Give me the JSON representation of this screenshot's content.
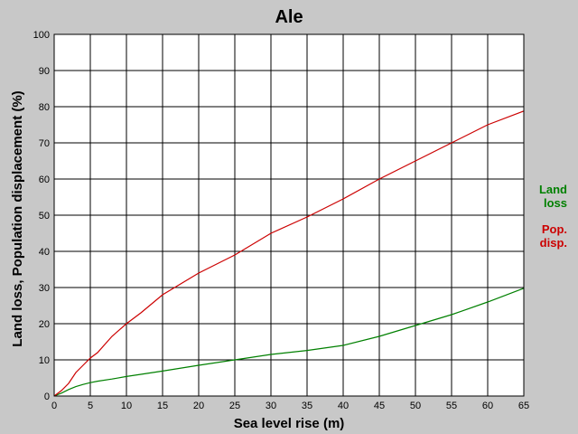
{
  "chart_data": {
    "type": "line",
    "title": "Ale",
    "xlabel": "Sea level rise (m)",
    "ylabel": "Land loss, Population displacement (%)",
    "xlim": [
      0,
      65
    ],
    "ylim": [
      0,
      100
    ],
    "xticks": [
      0,
      5,
      10,
      15,
      20,
      25,
      30,
      35,
      40,
      45,
      50,
      55,
      60,
      65
    ],
    "yticks": [
      0,
      10,
      20,
      30,
      40,
      50,
      60,
      70,
      80,
      90,
      100
    ],
    "grid": true,
    "legend_position": "right",
    "series": [
      {
        "name": "Land loss",
        "legend_lines": [
          "Land",
          "loss"
        ],
        "color": "#008000",
        "x": [
          0,
          1,
          2,
          3,
          4,
          5,
          6,
          8,
          10,
          12,
          15,
          20,
          25,
          30,
          35,
          40,
          45,
          50,
          55,
          60,
          65
        ],
        "y": [
          0,
          0.8,
          1.8,
          2.6,
          3.2,
          3.7,
          4.1,
          4.7,
          5.4,
          6.0,
          6.9,
          8.5,
          10.0,
          11.5,
          12.6,
          14.0,
          16.5,
          19.5,
          22.5,
          26.0,
          29.8
        ]
      },
      {
        "name": "Pop. disp.",
        "legend_lines": [
          "Pop.",
          "disp."
        ],
        "color": "#cc0000",
        "x": [
          0,
          1,
          2,
          3,
          4,
          5,
          6,
          8,
          10,
          12,
          15,
          20,
          25,
          30,
          35,
          40,
          45,
          50,
          55,
          60,
          65
        ],
        "y": [
          0,
          1.5,
          3.5,
          6.5,
          8.5,
          10.5,
          12.0,
          16.5,
          20.0,
          23.0,
          28.0,
          34.0,
          39.0,
          45.0,
          49.5,
          54.5,
          60.0,
          65.0,
          70.0,
          75.0,
          78.8
        ]
      }
    ]
  }
}
